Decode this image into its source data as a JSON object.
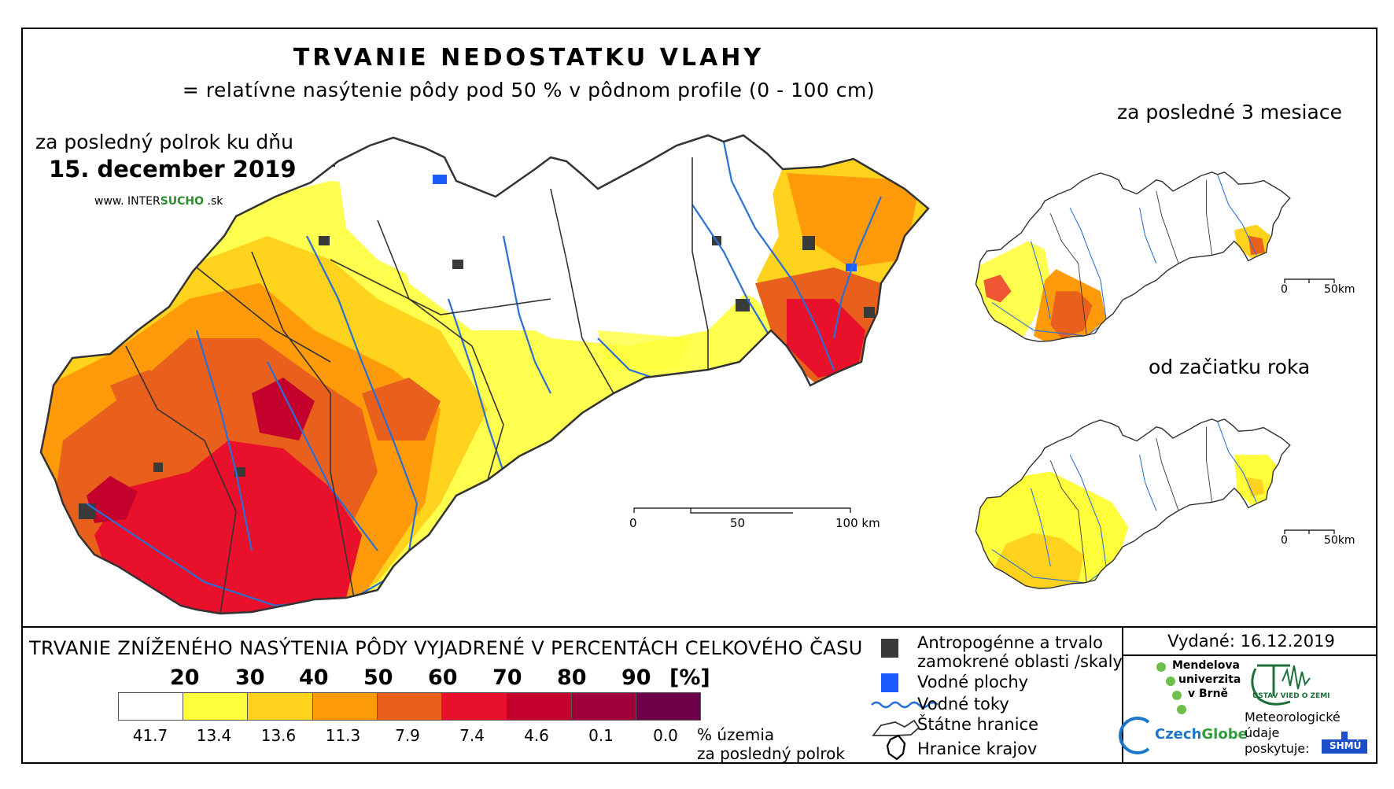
{
  "title": "TRVANIE NEDOSTATKU VLAHY",
  "subtitle": "= relatívne nasýtenie pôdy pod 50 % v pôdnom profile (0 - 100 cm)",
  "main_map": {
    "label": "za posledný polrok ku dňu",
    "date": "15. december 2019",
    "website_prefix": "www. INTER",
    "website_brand": "SUCHO",
    "website_suffix": " .sk",
    "scalebar": [
      "0",
      "50",
      "100 km"
    ]
  },
  "inset_3m": {
    "label": "za posledné 3 mesiace",
    "scalebar": [
      "0",
      "50km"
    ]
  },
  "inset_year": {
    "label": "od začiatku roka",
    "scalebar": [
      "0",
      "50km"
    ]
  },
  "legend": {
    "title": "TRVANIE ZNÍŽENÉHO NASÝTENIA PÔDY VYJADRENÉ V PERCENTÁCH CELKOVÉHO ČASU",
    "breaks": [
      "20",
      "30",
      "40",
      "50",
      "60",
      "70",
      "80",
      "90",
      "[%]"
    ],
    "colors": [
      "#ffffff",
      "#ffff3c",
      "#ffd21e",
      "#ff9a0a",
      "#e8601c",
      "#e8102a",
      "#c4002c",
      "#a0003a",
      "#6e004a"
    ],
    "percentages": [
      "41.7",
      "13.4",
      "13.6",
      "11.3",
      "7.9",
      "7.4",
      "4.6",
      "0.1",
      "0.0"
    ],
    "share_label_1": "% územia",
    "share_label_2": "za posledný polrok"
  },
  "map_legend": {
    "anthropogenic": "Antropogénne a trvalo",
    "anthropogenic_2": "zamokrené oblasti /skaly",
    "water_bodies": "Vodné plochy",
    "rivers": "Vodné toky",
    "state_border": "Štátne hranice",
    "region_border": "Hranice krajov"
  },
  "issued": "Vydané: 16.12.2019",
  "logos": {
    "mendelu_1": "Mendelova",
    "mendelu_2": "univerzita",
    "mendelu_3": "v Brně",
    "ustav": "ÚSTAV VIED O ZEMI",
    "czechglobe_1": "Czech",
    "czechglobe_2": "Globe",
    "meteo_1": "Meteorologické",
    "meteo_2": "údaje",
    "meteo_3": "poskytuje:",
    "shmu": "SHMÚ"
  }
}
